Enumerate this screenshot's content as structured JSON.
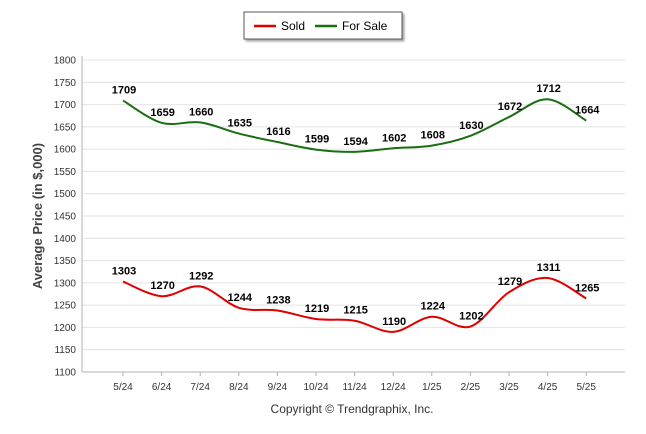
{
  "chart_data": {
    "type": "line",
    "categories": [
      "5/24",
      "6/24",
      "7/24",
      "8/24",
      "9/24",
      "10/24",
      "11/24",
      "12/24",
      "1/25",
      "2/25",
      "3/25",
      "4/25",
      "5/25"
    ],
    "series": [
      {
        "name": "Sold",
        "color": "#e00000",
        "values": [
          1303,
          1270,
          1292,
          1244,
          1238,
          1219,
          1215,
          1190,
          1224,
          1202,
          1279,
          1311,
          1265
        ]
      },
      {
        "name": "For Sale",
        "color": "#1a6e12",
        "values": [
          1709,
          1659,
          1660,
          1635,
          1616,
          1599,
          1594,
          1602,
          1608,
          1630,
          1672,
          1712,
          1664
        ]
      }
    ],
    "ylabel": "Average Price (in $,000)",
    "ylim": [
      1100,
      1800
    ],
    "yticks": [
      1100,
      1150,
      1200,
      1250,
      1300,
      1350,
      1400,
      1450,
      1500,
      1550,
      1600,
      1650,
      1700,
      1750,
      1800
    ],
    "grid": true,
    "legend_position": "top-center",
    "data_labels": true
  },
  "footer": {
    "copyright": "Copyright © Trendgraphix, Inc."
  }
}
